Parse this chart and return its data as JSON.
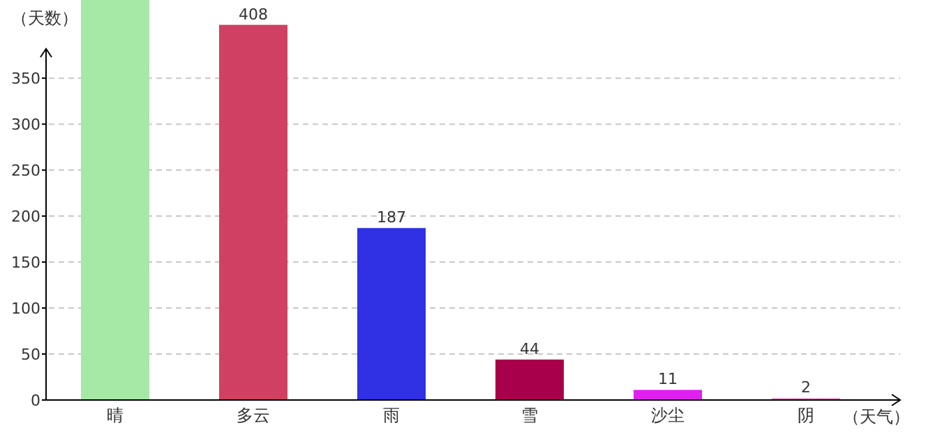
{
  "chart_data": {
    "type": "bar",
    "ylabel": "（天数）",
    "xlabel": "（天气）",
    "categories": [
      "晴",
      "多云",
      "雨",
      "雪",
      "沙尘",
      "阴"
    ],
    "values": [
      435,
      408,
      187,
      44,
      11,
      2
    ],
    "value_labels": [
      null,
      "408",
      "187",
      "44",
      "11",
      "2"
    ],
    "colors": [
      "#a6e8a6",
      "#d04062",
      "#3030e4",
      "#a8004a",
      "#e020f0",
      "#e090c0"
    ],
    "ylim": [
      0,
      435
    ],
    "yticks": [
      0,
      50,
      100,
      150,
      200,
      250,
      300,
      350
    ],
    "grid": "y"
  }
}
